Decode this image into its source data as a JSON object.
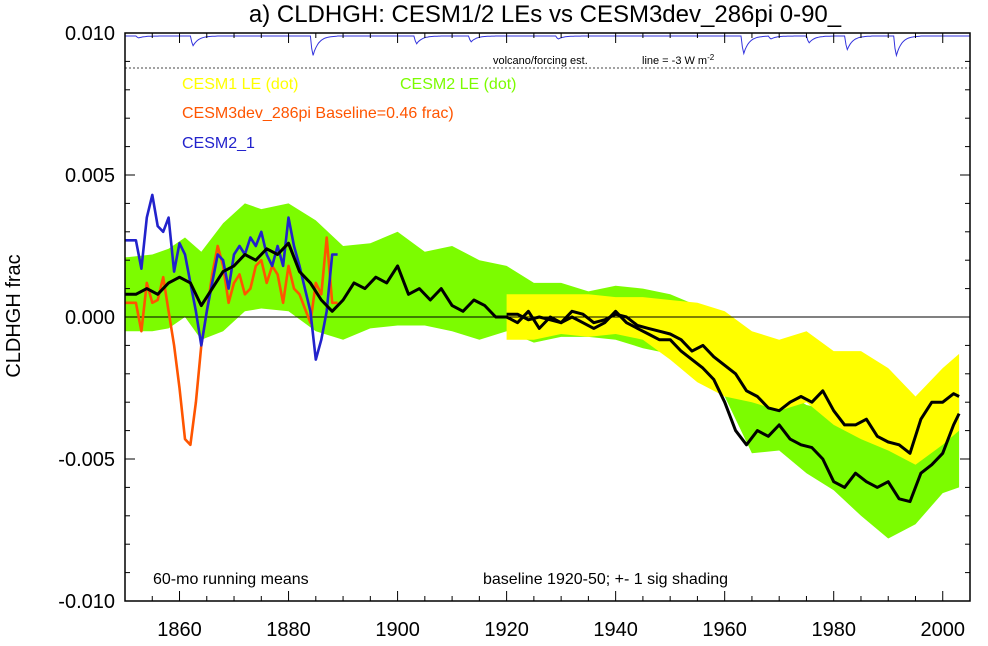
{
  "chart_data": {
    "type": "line",
    "title": "a) CLDHGH: CESM1/2 LEs vs CESM3dev_286pi 0-90_",
    "ylabel": "CLDHGH frac",
    "xlabel": "",
    "xlim": [
      1850,
      2005
    ],
    "ylim": [
      -0.01,
      0.01
    ],
    "x_ticks": [
      1860,
      1880,
      1900,
      1920,
      1940,
      1960,
      1980,
      2000
    ],
    "y_ticks": [
      "0.010",
      "0.005",
      "0.000",
      "-0.005",
      "-0.010"
    ],
    "legend": [
      {
        "label": "CESM1 LE (dot)",
        "color": "#ffff00"
      },
      {
        "label": "CESM2 LE (dot)",
        "color": "#7cfc00"
      },
      {
        "label": "CESM3dev_286pi Baseline=0.46 frac)",
        "color": "#ff5500"
      },
      {
        "label": "CESM2_1",
        "color": "#2222cc"
      }
    ],
    "annotations": {
      "volcano": "volcano/forcing est.",
      "line": "line = -3 W m",
      "line_sup": "-2",
      "running": "60-mo running means",
      "baseline": "baseline 1920-50; +- 1 sig shading"
    },
    "series": [
      {
        "name": "CESM2 LE (dot)",
        "color": "#7cfc00",
        "type": "band",
        "x": [
          1850,
          1855,
          1858,
          1861,
          1864,
          1868,
          1872,
          1875,
          1880,
          1885,
          1890,
          1895,
          1900,
          1905,
          1910,
          1915,
          1920,
          1925,
          1930,
          1935,
          1940,
          1945,
          1950,
          1955,
          1960,
          1965,
          1970,
          1975,
          1980,
          1985,
          1990,
          1995,
          2000,
          2003
        ],
        "lo": [
          -0.0005,
          -0.0005,
          -0.0004,
          0.0,
          -0.0008,
          -0.0005,
          0.0002,
          0.0003,
          0.0002,
          -0.0005,
          -0.0008,
          -0.0004,
          -0.0003,
          -0.0003,
          -0.0005,
          -0.0008,
          -0.0005,
          -0.0009,
          -0.0007,
          -0.0007,
          -0.0008,
          -0.0011,
          -0.0013,
          -0.0019,
          -0.0028,
          -0.0048,
          -0.0047,
          -0.0055,
          -0.0061,
          -0.007,
          -0.0078,
          -0.0073,
          -0.0062,
          -0.006
        ],
        "hi": [
          0.0021,
          0.0022,
          0.0024,
          0.0028,
          0.0023,
          0.0033,
          0.004,
          0.0038,
          0.004,
          0.0034,
          0.0025,
          0.0026,
          0.003,
          0.0023,
          0.0025,
          0.002,
          0.0018,
          0.0012,
          0.0012,
          0.0009,
          0.0011,
          0.001,
          0.0008,
          0.0004,
          -0.0008,
          -0.0025,
          -0.0025,
          -0.0031,
          -0.0033,
          -0.0038,
          -0.0045,
          -0.0047,
          -0.0035,
          -0.0027
        ]
      },
      {
        "name": "CESM1 LE (dot)",
        "color": "#ffff00",
        "type": "band",
        "x": [
          1920,
          1925,
          1930,
          1935,
          1940,
          1945,
          1950,
          1955,
          1960,
          1965,
          1970,
          1975,
          1980,
          1985,
          1990,
          1995,
          2000,
          2003
        ],
        "lo": [
          -0.0008,
          -0.0008,
          -0.0006,
          -0.0007,
          -0.0006,
          -0.0008,
          -0.0015,
          -0.0023,
          -0.0028,
          -0.003,
          -0.0033,
          -0.003,
          -0.0038,
          -0.0043,
          -0.0047,
          -0.0052,
          -0.0045,
          -0.004
        ],
        "hi": [
          0.0008,
          0.0008,
          0.0008,
          0.0008,
          0.0007,
          0.0007,
          0.0006,
          0.0005,
          0.0002,
          -0.0005,
          -0.0008,
          -0.0005,
          -0.0012,
          -0.0012,
          -0.0018,
          -0.0028,
          -0.0018,
          -0.0013
        ]
      },
      {
        "name": "CESM3dev_286pi Baseline=0.46 frac)",
        "color": "#ff5500",
        "type": "line",
        "x": [
          1850,
          1851,
          1852,
          1853,
          1854,
          1855,
          1856,
          1857,
          1858,
          1859,
          1860,
          1861,
          1862,
          1863,
          1864,
          1865,
          1866,
          1867,
          1868,
          1869,
          1870,
          1871,
          1872,
          1873,
          1874,
          1875,
          1876,
          1877,
          1878,
          1879,
          1880,
          1881,
          1882,
          1883,
          1884,
          1885,
          1886,
          1887,
          1888,
          1889
        ],
        "y": [
          0.0005,
          0.0005,
          0.0005,
          -0.0005,
          0.0012,
          0.0005,
          0.0006,
          0.0014,
          0.0002,
          -0.001,
          -0.0025,
          -0.0043,
          -0.0045,
          -0.003,
          -0.001,
          0.0002,
          0.0015,
          0.0025,
          0.0018,
          0.0005,
          0.0012,
          0.0015,
          0.0008,
          0.001,
          0.0018,
          0.002,
          0.0012,
          0.0018,
          0.0015,
          0.0005,
          0.0018,
          0.001,
          0.0008,
          0.0003,
          -0.0002,
          0.0012,
          0.0008,
          0.0028,
          0.0005,
          0.0005
        ]
      },
      {
        "name": "CESM2_1",
        "color": "#2222cc",
        "type": "line",
        "x": [
          1850,
          1851,
          1852,
          1853,
          1854,
          1855,
          1856,
          1857,
          1858,
          1859,
          1860,
          1861,
          1862,
          1863,
          1864,
          1865,
          1866,
          1867,
          1868,
          1869,
          1870,
          1871,
          1872,
          1873,
          1874,
          1875,
          1876,
          1877,
          1878,
          1879,
          1880,
          1881,
          1882,
          1883,
          1884,
          1885,
          1886,
          1887,
          1888,
          1889
        ],
        "y": [
          0.0027,
          0.0027,
          0.0027,
          0.0017,
          0.0035,
          0.0043,
          0.0032,
          0.003,
          0.0035,
          0.0016,
          0.0026,
          0.0022,
          0.0012,
          0.0002,
          -0.001,
          0.0002,
          0.0012,
          0.0022,
          0.002,
          0.001,
          0.0022,
          0.0025,
          0.0022,
          0.0028,
          0.0025,
          0.003,
          0.0022,
          0.0018,
          0.0025,
          0.0018,
          0.0035,
          0.0025,
          0.0018,
          0.001,
          0.0002,
          -0.0015,
          -0.0008,
          0.0002,
          0.0022,
          0.0022
        ]
      },
      {
        "name": "CESM2 LE mean",
        "color": "#000000",
        "type": "line",
        "x": [
          1850,
          1852,
          1854,
          1856,
          1858,
          1860,
          1862,
          1864,
          1866,
          1868,
          1870,
          1872,
          1874,
          1876,
          1878,
          1880,
          1882,
          1884,
          1886,
          1888,
          1890,
          1892,
          1894,
          1896,
          1898,
          1900,
          1902,
          1904,
          1906,
          1908,
          1910,
          1912,
          1914,
          1916,
          1918,
          1920,
          1922,
          1924,
          1926,
          1928,
          1930,
          1932,
          1934,
          1936,
          1938,
          1940,
          1942,
          1944,
          1946,
          1948,
          1950,
          1952,
          1954,
          1956,
          1958,
          1960,
          1962,
          1964,
          1966,
          1968,
          1970,
          1972,
          1974,
          1976,
          1978,
          1980,
          1982,
          1984,
          1986,
          1988,
          1990,
          1992,
          1994,
          1996,
          1998,
          2000,
          2002,
          2003
        ],
        "y": [
          0.0008,
          0.0008,
          0.001,
          0.0008,
          0.0012,
          0.0014,
          0.0012,
          0.0004,
          0.001,
          0.0016,
          0.0018,
          0.0022,
          0.002,
          0.0024,
          0.0022,
          0.0026,
          0.0016,
          0.0012,
          0.0006,
          0.0002,
          0.0006,
          0.0012,
          0.001,
          0.0014,
          0.0012,
          0.0018,
          0.0008,
          0.001,
          0.0006,
          0.001,
          0.0004,
          0.0002,
          0.0006,
          0.0004,
          0.0,
          0.0,
          -0.0002,
          0.0002,
          -0.0004,
          0.0,
          -0.0002,
          0.0,
          -0.0002,
          -0.0004,
          -0.0002,
          0.0002,
          -0.0002,
          -0.0004,
          -0.0006,
          -0.0008,
          -0.0008,
          -0.0012,
          -0.0015,
          -0.0018,
          -0.0022,
          -0.003,
          -0.004,
          -0.0045,
          -0.004,
          -0.0042,
          -0.0038,
          -0.0043,
          -0.0045,
          -0.0046,
          -0.005,
          -0.0058,
          -0.006,
          -0.0055,
          -0.0058,
          -0.006,
          -0.0058,
          -0.0064,
          -0.0065,
          -0.0055,
          -0.0052,
          -0.0048,
          -0.0038,
          -0.0034
        ]
      },
      {
        "name": "CESM1 LE mean",
        "color": "#000000",
        "type": "line",
        "x": [
          1920,
          1922,
          1924,
          1926,
          1928,
          1930,
          1932,
          1934,
          1936,
          1938,
          1940,
          1942,
          1944,
          1946,
          1948,
          1950,
          1952,
          1954,
          1956,
          1958,
          1960,
          1962,
          1964,
          1966,
          1968,
          1970,
          1972,
          1974,
          1976,
          1978,
          1980,
          1982,
          1984,
          1986,
          1988,
          1990,
          1992,
          1994,
          1996,
          1998,
          2000,
          2002,
          2003
        ],
        "y": [
          0.0001,
          0.0001,
          -0.0001,
          0.0,
          -0.0001,
          -0.0002,
          0.0002,
          0.0001,
          -0.0002,
          -0.0001,
          0.0001,
          0.0,
          -0.0003,
          -0.0004,
          -0.0005,
          -0.0006,
          -0.0008,
          -0.0012,
          -0.001,
          -0.0014,
          -0.0017,
          -0.002,
          -0.0026,
          -0.0028,
          -0.0032,
          -0.0033,
          -0.003,
          -0.0028,
          -0.003,
          -0.0026,
          -0.0033,
          -0.0038,
          -0.0038,
          -0.0036,
          -0.0042,
          -0.0044,
          -0.0045,
          -0.0048,
          -0.0036,
          -0.003,
          -0.003,
          -0.0027,
          -0.0028
        ]
      },
      {
        "name": "volcano/forcing est.",
        "color": "#3333dd",
        "type": "volcano",
        "dips": [
          [
            1852,
            0.1
          ],
          [
            1862,
            0.5
          ],
          [
            1884,
            1.0
          ],
          [
            1903,
            0.4
          ],
          [
            1913,
            0.3
          ],
          [
            1929,
            0.15
          ],
          [
            1963,
            0.9
          ],
          [
            1968,
            0.15
          ],
          [
            1975,
            0.35
          ],
          [
            1982,
            0.7
          ],
          [
            1991,
            1.0
          ]
        ]
      }
    ]
  }
}
